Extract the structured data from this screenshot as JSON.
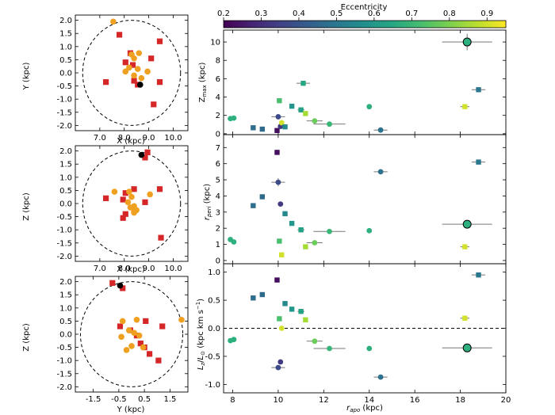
{
  "chart_data": [
    {
      "type": "scatter",
      "xlabel": "X (kpc)",
      "ylabel": "Y (kpc)",
      "xlim": [
        6.0,
        10.6
      ],
      "ylim": [
        -2.2,
        2.2
      ],
      "xticks": [
        7.0,
        8.0,
        9.0,
        10.0
      ],
      "xtick_labels": [
        "7.0",
        "8.0",
        "9.0",
        "10.0"
      ],
      "yticks": [
        -2.0,
        -1.5,
        -1.0,
        -0.5,
        0.0,
        0.5,
        1.0,
        1.5,
        2.0
      ],
      "ytick_labels": [
        "-2.0",
        "-1.5",
        "-1.0",
        "-0.5",
        "0.0",
        "0.5",
        "1.0",
        "1.5",
        "2.0"
      ],
      "circle": {
        "cx": 8.3,
        "cy": 0.0,
        "r": 2.0
      },
      "sun": [
        8.65,
        -0.45
      ],
      "squares": [
        [
          7.8,
          1.45
        ],
        [
          9.45,
          1.2
        ],
        [
          8.25,
          0.75
        ],
        [
          8.05,
          0.4
        ],
        [
          8.35,
          0.3
        ],
        [
          9.1,
          0.55
        ],
        [
          7.25,
          -0.35
        ],
        [
          8.4,
          -0.3
        ],
        [
          9.45,
          -0.35
        ],
        [
          8.55,
          -0.45
        ],
        [
          9.2,
          -1.2
        ]
      ],
      "circles": [
        [
          7.55,
          1.95
        ],
        [
          8.3,
          0.7
        ],
        [
          8.6,
          0.75
        ],
        [
          8.4,
          0.55
        ],
        [
          8.2,
          0.2
        ],
        [
          8.55,
          0.15
        ],
        [
          8.95,
          0.05
        ],
        [
          8.05,
          0.05
        ],
        [
          8.4,
          -0.1
        ],
        [
          8.7,
          -0.2
        ]
      ]
    },
    {
      "type": "scatter",
      "xlabel": "X (kpc)",
      "ylabel": "Z (kpc)",
      "xlim": [
        6.0,
        10.6
      ],
      "ylim": [
        -2.2,
        2.2
      ],
      "xticks": [
        7.0,
        8.0,
        9.0,
        10.0
      ],
      "xtick_labels": [
        "7.0",
        "8.0",
        "9.0",
        "10.0"
      ],
      "yticks": [
        -2.0,
        -1.5,
        -1.0,
        -0.5,
        0.0,
        0.5,
        1.0,
        1.5,
        2.0
      ],
      "ytick_labels": [
        "-2.0",
        "-1.5",
        "-1.0",
        "-0.5",
        "0.0",
        "0.5",
        "1.0",
        "1.5",
        "2.0"
      ],
      "circle": {
        "cx": 8.3,
        "cy": 0.0,
        "r": 2.0
      },
      "sun": [
        8.7,
        1.85
      ],
      "squares": [
        [
          8.95,
          1.95
        ],
        [
          8.85,
          1.75
        ],
        [
          8.4,
          0.55
        ],
        [
          9.45,
          0.55
        ],
        [
          7.25,
          0.2
        ],
        [
          8.05,
          0.4
        ],
        [
          7.95,
          0.15
        ],
        [
          8.85,
          0.05
        ],
        [
          8.05,
          -0.4
        ],
        [
          7.95,
          -0.55
        ],
        [
          9.5,
          -1.3
        ]
      ],
      "circles": [
        [
          7.6,
          0.45
        ],
        [
          8.2,
          0.45
        ],
        [
          8.3,
          0.25
        ],
        [
          8.15,
          0.05
        ],
        [
          8.4,
          -0.1
        ],
        [
          8.5,
          -0.25
        ],
        [
          8.4,
          -0.35
        ],
        [
          8.25,
          -0.15
        ],
        [
          9.05,
          0.35
        ],
        [
          8.4,
          -0.3
        ]
      ]
    },
    {
      "type": "scatter",
      "xlabel": "Y (kpc)",
      "ylabel": "Z (kpc)",
      "xlim": [
        -2.2,
        2.2
      ],
      "ylim": [
        -2.2,
        2.2
      ],
      "xticks": [
        -1.5,
        -0.5,
        0.5,
        1.5
      ],
      "xtick_labels": [
        "-1.5",
        "-0.5",
        "0.5",
        "1.5"
      ],
      "yticks": [
        -2.0,
        -1.5,
        -1.0,
        -0.5,
        0.0,
        0.5,
        1.0,
        1.5,
        2.0
      ],
      "ytick_labels": [
        "-2.0",
        "-1.5",
        "-1.0",
        "-0.5",
        "0.0",
        "0.5",
        "1.0",
        "1.5",
        "2.0"
      ],
      "circle": {
        "cx": 0.0,
        "cy": 0.0,
        "r": 2.0
      },
      "sun": [
        -0.45,
        1.85
      ],
      "squares": [
        [
          -0.75,
          1.95
        ],
        [
          -0.35,
          1.75
        ],
        [
          0.55,
          0.5
        ],
        [
          -0.45,
          0.3
        ],
        [
          1.2,
          0.3
        ],
        [
          -0.05,
          0.15
        ],
        [
          0.35,
          -0.35
        ],
        [
          0.5,
          -0.5
        ],
        [
          0.7,
          -0.75
        ],
        [
          0.2,
          -0.05
        ],
        [
          1.05,
          -1.0
        ]
      ],
      "circles": [
        [
          -0.35,
          0.5
        ],
        [
          0.2,
          0.55
        ],
        [
          -0.1,
          0.15
        ],
        [
          0.1,
          0.05
        ],
        [
          0.3,
          -0.05
        ],
        [
          -0.4,
          -0.1
        ],
        [
          0.0,
          -0.45
        ],
        [
          0.45,
          -0.5
        ],
        [
          -0.2,
          -0.6
        ],
        [
          1.95,
          0.55
        ]
      ]
    },
    {
      "type": "scatter",
      "xlabel": "",
      "ylabel": "Z_max (kpc)",
      "xlim": [
        7.6,
        20.0
      ],
      "ylim": [
        -0.1,
        11.3
      ],
      "yticks": [
        0,
        2,
        4,
        6,
        8,
        10
      ],
      "ytick_labels": [
        "0",
        "2",
        "4",
        "6",
        "8",
        "10"
      ],
      "points": [
        {
          "x": 7.9,
          "y": 1.65,
          "e": 0.68,
          "m": "c"
        },
        {
          "x": 8.05,
          "y": 1.7,
          "e": 0.68,
          "m": "c"
        },
        {
          "x": 8.9,
          "y": 0.65,
          "e": 0.47,
          "m": "s"
        },
        {
          "x": 9.3,
          "y": 0.5,
          "e": 0.46,
          "m": "s"
        },
        {
          "x": 9.95,
          "y": 0.35,
          "e": 0.23,
          "m": "s"
        },
        {
          "x": 10.0,
          "y": 1.85,
          "e": 0.37,
          "m": "c",
          "xerr": 0.3
        },
        {
          "x": 10.05,
          "y": 3.6,
          "e": 0.73,
          "m": "s"
        },
        {
          "x": 10.1,
          "y": 0.8,
          "e": 0.33,
          "m": "c"
        },
        {
          "x": 10.15,
          "y": 1.2,
          "e": 0.9,
          "m": "c"
        },
        {
          "x": 10.3,
          "y": 0.75,
          "e": 0.55,
          "m": "s"
        },
        {
          "x": 10.6,
          "y": 3.0,
          "e": 0.6,
          "m": "s"
        },
        {
          "x": 11.0,
          "y": 2.6,
          "e": 0.63,
          "m": "s",
          "xerr": 0.15
        },
        {
          "x": 11.1,
          "y": 5.5,
          "e": 0.65,
          "m": "s",
          "xerr": 0.3
        },
        {
          "x": 11.2,
          "y": 2.2,
          "e": 0.85,
          "m": "s"
        },
        {
          "x": 11.6,
          "y": 1.4,
          "e": 0.78,
          "m": "c",
          "xerr": 0.35
        },
        {
          "x": 12.25,
          "y": 1.05,
          "e": 0.7,
          "m": "c",
          "xerr": 0.7
        },
        {
          "x": 14.0,
          "y": 2.95,
          "e": 0.68,
          "m": "c"
        },
        {
          "x": 14.5,
          "y": 0.4,
          "e": 0.48,
          "m": "c",
          "xerr": 0.3
        },
        {
          "x": 18.2,
          "y": 2.95,
          "e": 0.9,
          "m": "s",
          "xerr": 0.2
        },
        {
          "x": 18.3,
          "y": 10.0,
          "e": 0.68,
          "m": "c",
          "xerr": 1.1,
          "yerr": 0.9
        },
        {
          "x": 18.8,
          "y": 4.8,
          "e": 0.5,
          "m": "s",
          "xerr": 0.3
        }
      ]
    },
    {
      "type": "scatter",
      "xlabel": "",
      "ylabel": "r_peri (kpc)",
      "xlim": [
        7.6,
        20.0
      ],
      "ylim": [
        -0.2,
        7.8
      ],
      "yticks": [
        0,
        1,
        2,
        3,
        4,
        5,
        6,
        7
      ],
      "ytick_labels": [
        "0",
        "1",
        "2",
        "3",
        "4",
        "5",
        "6",
        "7"
      ],
      "points": [
        {
          "x": 7.9,
          "y": 1.3,
          "e": 0.68,
          "m": "c"
        },
        {
          "x": 8.05,
          "y": 1.15,
          "e": 0.68,
          "m": "c"
        },
        {
          "x": 8.9,
          "y": 3.4,
          "e": 0.47,
          "m": "s"
        },
        {
          "x": 9.3,
          "y": 3.95,
          "e": 0.46,
          "m": "s"
        },
        {
          "x": 9.95,
          "y": 6.7,
          "e": 0.23,
          "m": "s"
        },
        {
          "x": 10.0,
          "y": 4.85,
          "e": 0.37,
          "m": "c",
          "xerr": 0.3,
          "yerr": 0.25
        },
        {
          "x": 10.05,
          "y": 1.2,
          "e": 0.73,
          "m": "s"
        },
        {
          "x": 10.1,
          "y": 3.5,
          "e": 0.33,
          "m": "c"
        },
        {
          "x": 10.15,
          "y": 0.35,
          "e": 0.9,
          "m": "s"
        },
        {
          "x": 10.3,
          "y": 2.9,
          "e": 0.55,
          "m": "s"
        },
        {
          "x": 10.6,
          "y": 2.3,
          "e": 0.6,
          "m": "s"
        },
        {
          "x": 11.0,
          "y": 1.9,
          "e": 0.63,
          "m": "s",
          "xerr": 0.15
        },
        {
          "x": 11.2,
          "y": 0.85,
          "e": 0.85,
          "m": "s"
        },
        {
          "x": 11.6,
          "y": 1.1,
          "e": 0.78,
          "m": "c",
          "xerr": 0.35
        },
        {
          "x": 12.25,
          "y": 1.8,
          "e": 0.7,
          "m": "c",
          "xerr": 0.7
        },
        {
          "x": 14.0,
          "y": 1.85,
          "e": 0.68,
          "m": "c"
        },
        {
          "x": 14.5,
          "y": 5.5,
          "e": 0.48,
          "m": "c",
          "xerr": 0.3
        },
        {
          "x": 18.2,
          "y": 0.85,
          "e": 0.9,
          "m": "s",
          "xerr": 0.2
        },
        {
          "x": 18.3,
          "y": 2.25,
          "e": 0.68,
          "m": "c",
          "xerr": 1.1
        },
        {
          "x": 18.8,
          "y": 6.1,
          "e": 0.5,
          "m": "s",
          "xerr": 0.3
        }
      ]
    },
    {
      "type": "scatter",
      "xlabel": "r_apo (kpc)",
      "ylabel": "L_z/L_⊙ (kpc km s⁻¹)",
      "xlim": [
        7.6,
        20.0
      ],
      "ylim": [
        -1.15,
        1.15
      ],
      "xticks": [
        8,
        10,
        12,
        14,
        16,
        18,
        20
      ],
      "xtick_labels": [
        "8",
        "10",
        "12",
        "14",
        "16",
        "18",
        "20"
      ],
      "yticks": [
        -1.0,
        -0.5,
        0.0,
        0.5,
        1.0
      ],
      "ytick_labels": [
        "-1.0",
        "-0.5",
        "0.0",
        "0.5",
        "1.0"
      ],
      "zero_line": 0.0,
      "points": [
        {
          "x": 7.9,
          "y": -0.22,
          "e": 0.68,
          "m": "c"
        },
        {
          "x": 8.05,
          "y": -0.2,
          "e": 0.68,
          "m": "c"
        },
        {
          "x": 8.9,
          "y": 0.54,
          "e": 0.47,
          "m": "s"
        },
        {
          "x": 9.3,
          "y": 0.6,
          "e": 0.46,
          "m": "s"
        },
        {
          "x": 9.95,
          "y": 0.86,
          "e": 0.23,
          "m": "s"
        },
        {
          "x": 10.0,
          "y": -0.7,
          "e": 0.37,
          "m": "c",
          "xerr": 0.3
        },
        {
          "x": 10.05,
          "y": 0.17,
          "e": 0.73,
          "m": "s"
        },
        {
          "x": 10.1,
          "y": -0.6,
          "e": 0.33,
          "m": "c"
        },
        {
          "x": 10.15,
          "y": 0.0,
          "e": 0.9,
          "m": "c"
        },
        {
          "x": 10.3,
          "y": 0.44,
          "e": 0.55,
          "m": "s"
        },
        {
          "x": 10.6,
          "y": 0.34,
          "e": 0.6,
          "m": "s"
        },
        {
          "x": 11.0,
          "y": 0.3,
          "e": 0.63,
          "m": "s",
          "xerr": 0.15
        },
        {
          "x": 11.2,
          "y": 0.15,
          "e": 0.85,
          "m": "s"
        },
        {
          "x": 11.6,
          "y": -0.23,
          "e": 0.78,
          "m": "c",
          "xerr": 0.35
        },
        {
          "x": 12.25,
          "y": -0.36,
          "e": 0.7,
          "m": "c",
          "xerr": 0.7
        },
        {
          "x": 14.0,
          "y": -0.36,
          "e": 0.68,
          "m": "c"
        },
        {
          "x": 14.5,
          "y": -0.87,
          "e": 0.48,
          "m": "c",
          "xerr": 0.3
        },
        {
          "x": 18.2,
          "y": 0.18,
          "e": 0.9,
          "m": "s",
          "xerr": 0.2
        },
        {
          "x": 18.3,
          "y": -0.35,
          "e": 0.68,
          "m": "c",
          "xerr": 1.1
        },
        {
          "x": 18.8,
          "y": 0.95,
          "e": 0.5,
          "m": "s",
          "xerr": 0.3
        }
      ]
    }
  ],
  "colorbar": {
    "label": "Eccentricity",
    "range": [
      0.2,
      0.95
    ],
    "ticks": [
      0.2,
      0.3,
      0.4,
      0.5,
      0.6,
      0.7,
      0.8,
      0.9
    ],
    "tick_labels": [
      "0.2",
      "0.3",
      "0.4",
      "0.5",
      "0.6",
      "0.7",
      "0.8",
      "0.9"
    ],
    "colormap": "viridis"
  },
  "colors": {
    "square": "#d62728",
    "circle": "#f0a020",
    "sun": "#000000"
  }
}
